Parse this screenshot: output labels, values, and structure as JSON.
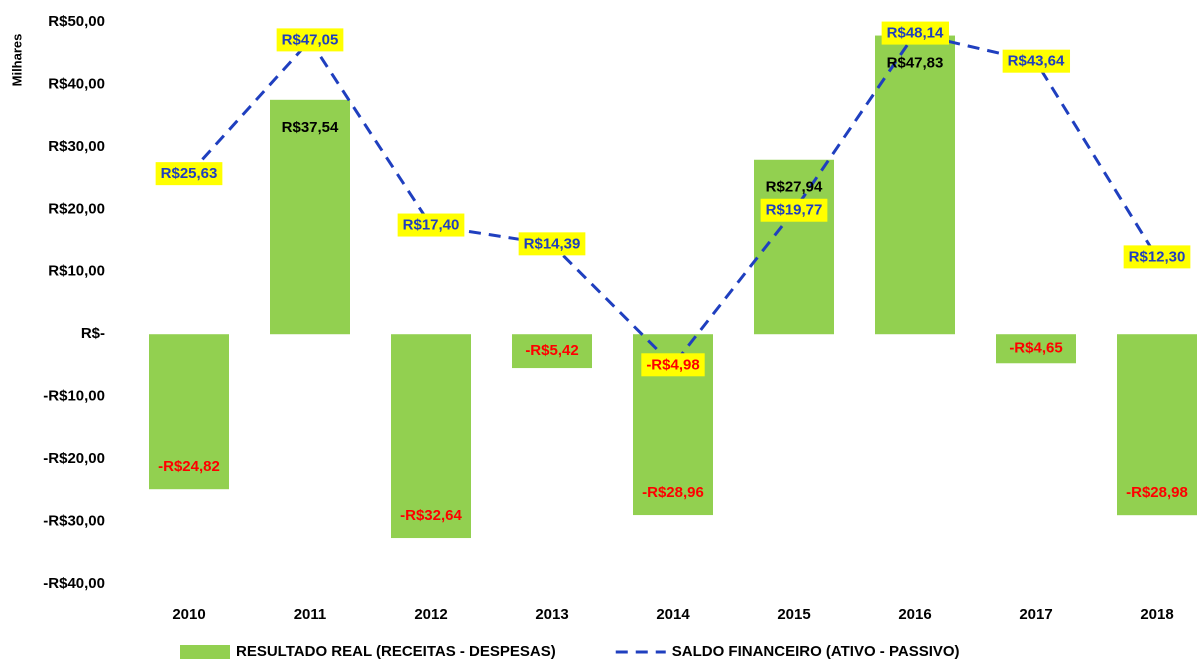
{
  "chart_data": {
    "type": "bar",
    "y_label": "Milhares",
    "categories": [
      "2010",
      "2011",
      "2012",
      "2013",
      "2014",
      "2015",
      "2016",
      "2017",
      "2018"
    ],
    "series": [
      {
        "name": "RESULTADO REAL (RECEITAS - DESPESAS)",
        "type": "bar",
        "color": "#92d050",
        "label_color": "#000000",
        "negative_label_color": "#ff0000",
        "values": [
          -24.82,
          37.54,
          -32.64,
          -5.42,
          -28.96,
          27.94,
          47.83,
          -4.65,
          -28.98
        ],
        "value_labels": [
          "-R$24,82",
          "R$37,54",
          "-R$32,64",
          "-R$5,42",
          "-R$28,96",
          "R$27,94",
          "R$47,83",
          "-R$4,65",
          "-R$28,98"
        ]
      },
      {
        "name": "SALDO FINANCEIRO (ATIVO - PASSIVO)",
        "type": "line",
        "color": "#1f3fbf",
        "dashed": true,
        "label_color": "#1f3fbf",
        "negative_label_color": "#ff0000",
        "label_background": "#ffff00",
        "values": [
          25.63,
          47.05,
          17.4,
          14.39,
          -4.98,
          19.77,
          48.14,
          43.64,
          12.3
        ],
        "value_labels": [
          "R$25,63",
          "R$47,05",
          "R$17,40",
          "R$14,39",
          "-R$4,98",
          "R$19,77",
          "R$48,14",
          "R$43,64",
          "R$12,30"
        ]
      }
    ],
    "ylim": [
      -40,
      50
    ],
    "yticks": [
      {
        "value": -40,
        "label": "-R$40,00"
      },
      {
        "value": -30,
        "label": "-R$30,00"
      },
      {
        "value": -20,
        "label": "-R$20,00"
      },
      {
        "value": -10,
        "label": "-R$10,00"
      },
      {
        "value": 0,
        "label": "R$-"
      },
      {
        "value": 10,
        "label": "R$10,00"
      },
      {
        "value": 20,
        "label": "R$20,00"
      },
      {
        "value": 30,
        "label": "R$30,00"
      },
      {
        "value": 40,
        "label": "R$40,00"
      },
      {
        "value": 50,
        "label": "R$50,00"
      }
    ],
    "grid": false,
    "legend": "bottom"
  }
}
